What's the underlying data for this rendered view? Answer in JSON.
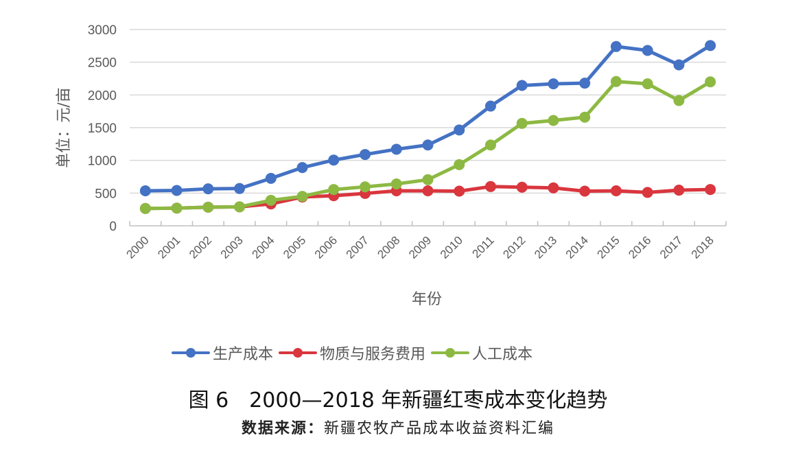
{
  "chart_data": {
    "type": "line",
    "title": "图6 2000—2018年新疆红枣成本变化趋势",
    "xlabel": "年份",
    "ylabel": "单位：元/亩",
    "ylim": [
      0,
      3000
    ],
    "yticks": [
      0,
      500,
      1000,
      1500,
      2000,
      2500,
      3000
    ],
    "grid": true,
    "legend_position": "bottom",
    "categories": [
      "2000",
      "2001",
      "2002",
      "2003",
      "2004",
      "2005",
      "2006",
      "2007",
      "2008",
      "2009",
      "2010",
      "2011",
      "2012",
      "2013",
      "2014",
      "2015",
      "2016",
      "2017",
      "2018"
    ],
    "series": [
      {
        "name": "生产成本",
        "color": "#4472C4",
        "values": [
          535,
          540,
          565,
          570,
          725,
          890,
          1005,
          1090,
          1170,
          1235,
          1465,
          1830,
          2145,
          2170,
          2180,
          2740,
          2680,
          2460,
          2755
        ]
      },
      {
        "name": "物质与服务费用",
        "color": "#D9363E",
        "values": [
          265,
          270,
          285,
          290,
          335,
          440,
          460,
          495,
          535,
          535,
          530,
          600,
          590,
          580,
          530,
          535,
          510,
          545,
          555
        ]
      },
      {
        "name": "人工成本",
        "color": "#8DB943",
        "values": [
          265,
          270,
          285,
          290,
          390,
          450,
          555,
          595,
          640,
          705,
          935,
          1235,
          1565,
          1610,
          1660,
          2205,
          2170,
          1915,
          2200
        ]
      }
    ]
  },
  "ylabel_text": "单位：元/亩",
  "xlabel_text": "年份",
  "legend": [
    {
      "label": "生产成本",
      "color": "#4472C4"
    },
    {
      "label": "物质与服务费用",
      "color": "#D9363E"
    },
    {
      "label": "人工成本",
      "color": "#8DB943"
    }
  ],
  "caption": "图 6　2000—2018 年新疆红枣成本变化趋势",
  "source": {
    "label": "数据来源：",
    "text": "新疆农牧产品成本收益资料汇编"
  }
}
